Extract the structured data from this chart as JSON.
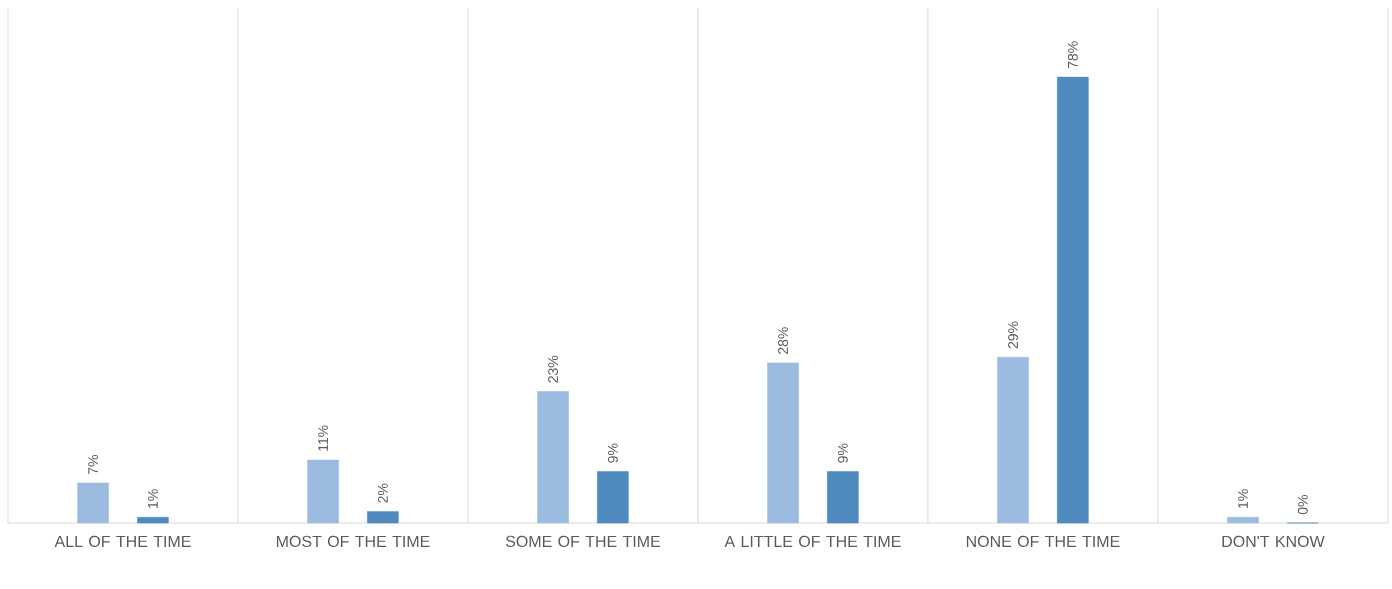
{
  "chart_data": {
    "type": "bar",
    "categories": [
      "ALL OF THE TIME",
      "MOST OF THE TIME",
      "SOME OF THE TIME",
      "A LITTLE OF THE TIME",
      "NONE OF THE TIME",
      "DON'T KNOW"
    ],
    "series": [
      {
        "color": "#9bbbe0",
        "values": [
          7,
          11,
          23,
          28,
          29,
          1
        ],
        "value_labels": [
          "7%",
          "11%",
          "23%",
          "28%",
          "29%",
          "1%"
        ]
      },
      {
        "color": "#4f8abf",
        "values": [
          1,
          2,
          9,
          9,
          78,
          0
        ],
        "value_labels": [
          "1%",
          "2%",
          "9%",
          "9%",
          "78%",
          "0%"
        ]
      }
    ],
    "grid": "x"
  }
}
